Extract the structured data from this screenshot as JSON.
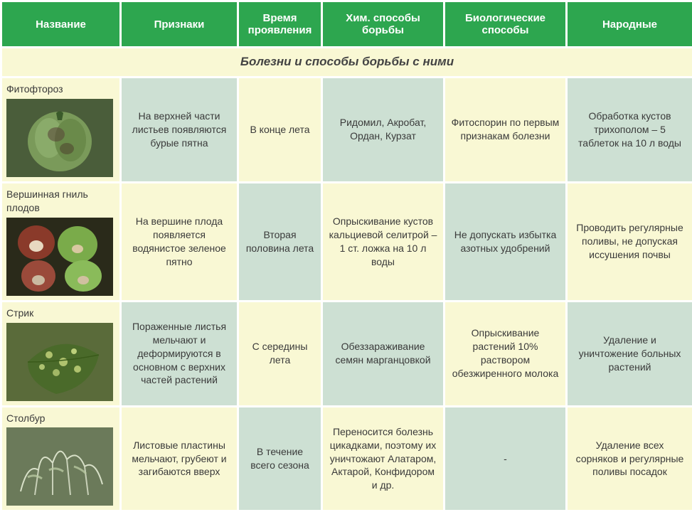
{
  "headers": {
    "name": "Название",
    "signs": "Признаки",
    "timing": "Время проявления",
    "chemical": "Хим. способы борьбы",
    "biological": "Биологические способы",
    "folk": "Народные"
  },
  "section_title": "Болезни и способы борьбы с ними",
  "rows": [
    {
      "name": "Фитофтороз",
      "signs": "На верхней части листьев появляются бурые пятна",
      "timing": "В конце лета",
      "chemical": "Ридомил, Акробат, Ордан, Курзат",
      "biological": "Фитоспорин по первым признакам болезни",
      "folk": "Обработка кустов трихополом – 5 таблеток на 10 л воды"
    },
    {
      "name": "Вершинная гниль плодов",
      "signs": "На вершине плода появляется водянистое зеленое пятно",
      "timing": "Вторая половина лета",
      "chemical": "Опрыскивание кустов кальциевой селитрой – 1 ст. ложка на 10 л воды",
      "biological": "Не допускать избытка азотных удобрений",
      "folk": "Проводить регулярные поливы, не допуская иссушения почвы"
    },
    {
      "name": "Стрик",
      "signs": "Пораженные листья мельчают и деформируются в основном с верхних частей растений",
      "timing": "С середины лета",
      "chemical": "Обеззараживание семян марганцовкой",
      "biological": "Опрыскивание растений 10% раствором обезжиренного молока",
      "folk": "Удаление и уничтожение больных растений"
    },
    {
      "name": "Столбур",
      "signs": "Листовые пластины мельчают, грубеют и загибаются вверх",
      "timing": "В течение всего сезона",
      "chemical": "Переносится болезнь цикадками, поэтому их уничтожают Алатаром, Актарой, Конфидором и др.",
      "biological": "-",
      "folk": "Удаление всех сорняков и регулярные поливы посадок"
    }
  ],
  "colors": {
    "header_bg": "#2da64f",
    "header_text": "#ffffff",
    "cream": "#f9f8d4",
    "lightgreen": "#cde0d3",
    "border": "#ffffff",
    "text": "#3a3a3a"
  },
  "row_colors": [
    [
      "c-lightgreen",
      "c-cream",
      "c-lightgreen",
      "c-cream",
      "c-lightgreen"
    ],
    [
      "c-cream",
      "c-lightgreen",
      "c-cream",
      "c-lightgreen",
      "c-cream"
    ],
    [
      "c-lightgreen",
      "c-cream",
      "c-lightgreen",
      "c-cream",
      "c-lightgreen"
    ],
    [
      "c-cream",
      "c-lightgreen",
      "c-cream",
      "c-lightgreen",
      "c-cream"
    ]
  ],
  "images": [
    {
      "type": "pepper-diseased",
      "bg": "#4a5d3a"
    },
    {
      "type": "peppers-rot",
      "bg": "#2a2a1a"
    },
    {
      "type": "leaf-mottled",
      "bg": "#5a6b3a"
    },
    {
      "type": "plant-wilted",
      "bg": "#6b7a5a"
    }
  ]
}
